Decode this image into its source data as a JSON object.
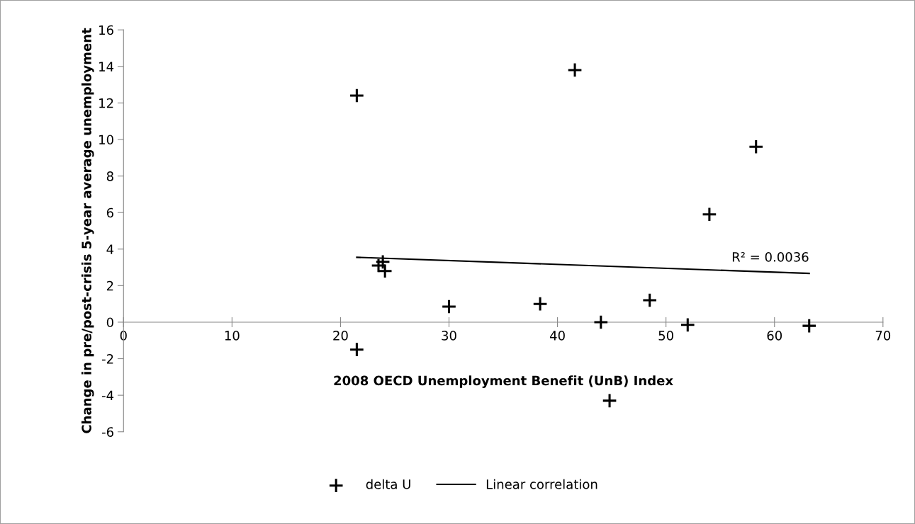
{
  "chart_data": {
    "type": "scatter",
    "xlabel": "2008 OECD Unemployment Benefit (UnB) Index",
    "ylabel": "Change in pre/post-crisis 5-year average unemployment",
    "series": [
      {
        "name": "delta U",
        "color": "#000000",
        "marker": "cross",
        "x": [
          21.5,
          41.6,
          58.3,
          54.0,
          23.9,
          23.5,
          24.1,
          30.0,
          38.4,
          44.0,
          48.5,
          52.0,
          63.2,
          21.5,
          44.8
        ],
        "values": [
          12.4,
          13.8,
          9.6,
          5.9,
          3.3,
          3.1,
          2.8,
          0.85,
          1.0,
          0,
          1.2,
          -0.15,
          -0.2,
          -1.5,
          -4.3
        ]
      },
      {
        "name": "Linear correlation",
        "type": "line",
        "color": "#000000",
        "marker": "none",
        "line_style": "solid",
        "x": [
          21.5,
          63.2
        ],
        "values": [
          3.55,
          2.67
        ]
      }
    ],
    "annotations": [
      {
        "text": "R² = 0.0036",
        "x": 63.2,
        "y": 2.67
      }
    ],
    "xlim": [
      0,
      70
    ],
    "xticks": [
      0,
      10,
      20,
      30,
      40,
      50,
      60,
      70
    ],
    "ylim": [
      -6,
      16
    ],
    "yticks": [
      -6,
      -4,
      -2,
      0,
      2,
      4,
      6,
      8,
      10,
      12,
      14,
      16
    ],
    "grid": false,
    "legend": "bottom"
  }
}
